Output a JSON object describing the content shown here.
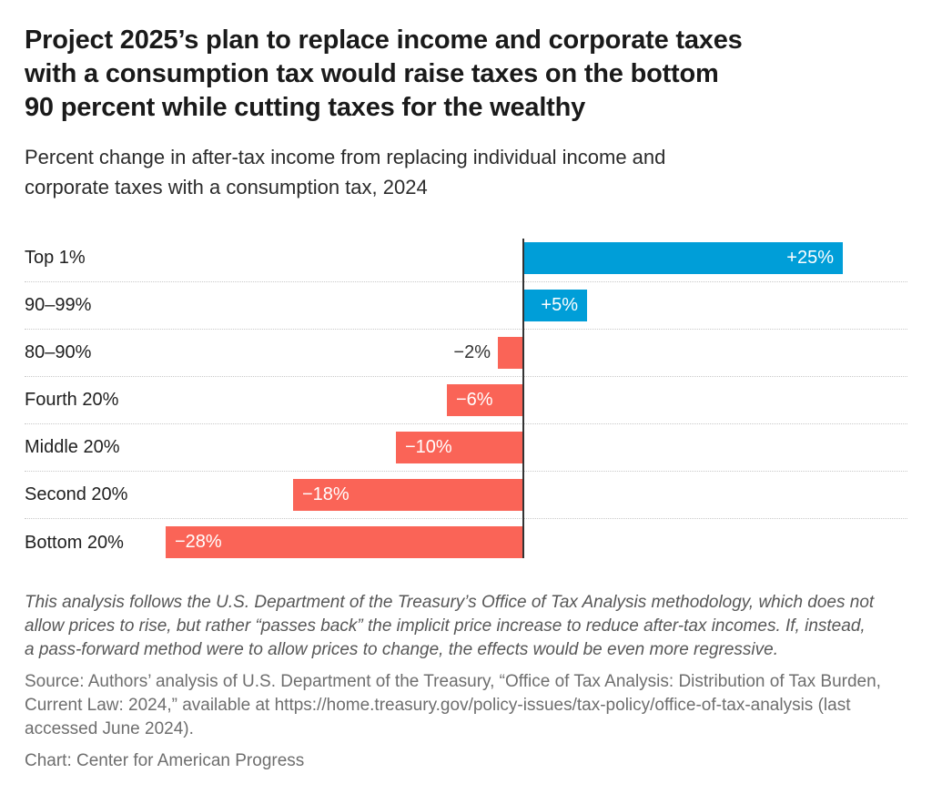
{
  "header": {
    "title": "Project 2025’s plan to replace income and corporate taxes\nwith a consumption tax would raise taxes on the bottom\n90 percent while cutting taxes for the wealthy",
    "subtitle": "Percent change in after-tax income from replacing individual income and\ncorporate taxes with a consumption tax, 2024"
  },
  "colors": {
    "positive_bar": "#009ed8",
    "negative_bar": "#fa6457",
    "axis": "#333333",
    "separator": "#c9c9c9"
  },
  "chart_data": {
    "type": "bar",
    "orientation": "horizontal",
    "unit": "percent change in after-tax income",
    "categories": [
      "Top 1%",
      "90–99%",
      "80–90%",
      "Fourth 20%",
      "Middle 20%",
      "Second 20%",
      "Bottom 20%"
    ],
    "values": [
      25,
      5,
      -2,
      -6,
      -10,
      -18,
      -28
    ],
    "bar_labels": [
      "+25%",
      "+5%",
      "−2%",
      "−6%",
      "−10%",
      "−18%",
      "−28%"
    ],
    "xlim": [
      -39,
      30
    ],
    "zero_axis": true,
    "grid": "dotted-row-separators",
    "legend": "none",
    "title": "Percent change in after-tax income from replacing individual income and corporate taxes with a consumption tax, 2024"
  },
  "footer": {
    "note": "This analysis follows the U.S. Department of the Treasury’s Office of Tax Analysis methodology, which does not\nallow prices to rise, but rather “passes back” the implicit price increase to reduce after-tax incomes. If, instead,\na pass-forward method were to allow prices to change, the effects would be even more regressive.",
    "source": "Source: Authors’ analysis of U.S. Department of the Treasury, “Office of Tax Analysis: Distribution of Tax Burden,\nCurrent Law: 2024,” available at https://home.treasury.gov/policy-issues/tax-policy/office-of-tax-analysis (last\naccessed June 2024).",
    "credit": "Chart: Center for American Progress"
  }
}
